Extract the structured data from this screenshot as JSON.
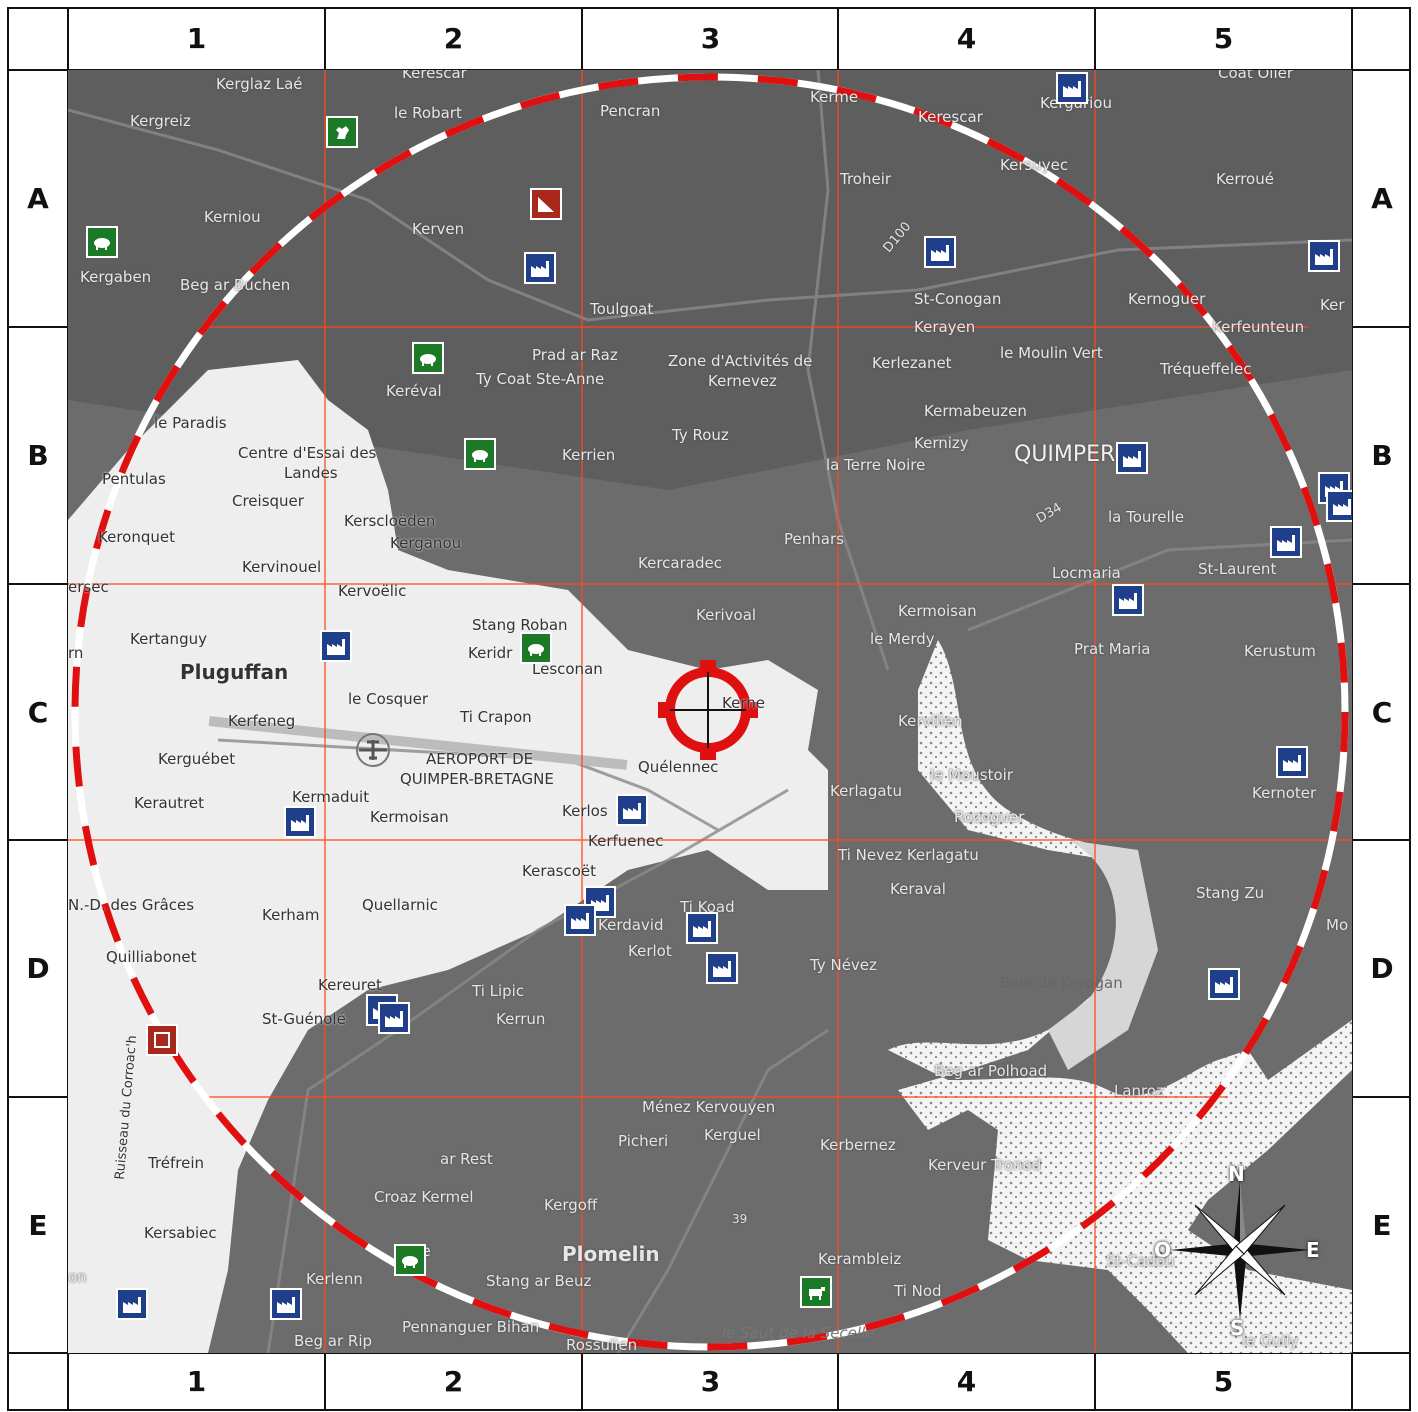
{
  "grid": {
    "columns": [
      "1",
      "2",
      "3",
      "4",
      "5"
    ],
    "rows": [
      "A",
      "B",
      "C",
      "D",
      "E"
    ]
  },
  "colors": {
    "relief_dark": "#6c6c6c",
    "lowland_light": "#eeeeee",
    "water": "#e8e8e8",
    "grid_line": "#ff4a1a",
    "radius_red": "#e01010",
    "factory_blue": "#1f3f8a",
    "farm_green": "#1c7a26",
    "hazard_red": "#a8281c"
  },
  "target": {
    "icon": "crosshair-target-icon"
  },
  "compass": {
    "n": "N",
    "s": "S",
    "e": "E",
    "w": "O"
  },
  "places": [
    {
      "id": "kerglaz",
      "label": "Kerglaz Laé"
    },
    {
      "id": "kergreiz",
      "label": "Kergreiz"
    },
    {
      "id": "lerobart",
      "label": "le Robart"
    },
    {
      "id": "pencran",
      "label": "Pencran"
    },
    {
      "id": "kerescar",
      "label": "Kerescar"
    },
    {
      "id": "kerescar2",
      "label": "Kerescar"
    },
    {
      "id": "kerme",
      "label": "Kerme"
    },
    {
      "id": "kergariou",
      "label": "Kergariou"
    },
    {
      "id": "coatolier",
      "label": "Coat Olier"
    },
    {
      "id": "kerniou",
      "label": "Kerniou"
    },
    {
      "id": "kerven",
      "label": "Kerven"
    },
    {
      "id": "troheir",
      "label": "Troheir"
    },
    {
      "id": "kersuyec",
      "label": "Kersuyec"
    },
    {
      "id": "kerroue",
      "label": "Kerroué"
    },
    {
      "id": "kergaben",
      "label": "Kergaben"
    },
    {
      "id": "begarbuchen",
      "label": "Beg ar Buchen"
    },
    {
      "id": "d100",
      "label": "D100"
    },
    {
      "id": "stconogan",
      "label": "St-Conogan"
    },
    {
      "id": "kernoguer",
      "label": "Kernoguer"
    },
    {
      "id": "toulgoat",
      "label": "Toulgoat"
    },
    {
      "id": "kerayen",
      "label": "Kerayen"
    },
    {
      "id": "kerfeunteun",
      "label": "Kerfeunteun"
    },
    {
      "id": "pradarraz",
      "label": "Prad ar Raz"
    },
    {
      "id": "tycoat",
      "label": "Ty Coat Ste-Anne"
    },
    {
      "id": "zone",
      "label": "Zone d'Activités de"
    },
    {
      "id": "kernevez",
      "label": "Kernevez"
    },
    {
      "id": "kerlezanet",
      "label": "Kerlezanet"
    },
    {
      "id": "moulinvert",
      "label": "le Moulin Vert"
    },
    {
      "id": "trequeffelec",
      "label": "Tréqueffelec"
    },
    {
      "id": "kereval",
      "label": "Keréval"
    },
    {
      "id": "kermabeuzen",
      "label": "Kermabeuzen"
    },
    {
      "id": "leparadis",
      "label": "le Paradis"
    },
    {
      "id": "tyrouz",
      "label": "Ty Rouz"
    },
    {
      "id": "kernizy",
      "label": "Kernizy"
    },
    {
      "id": "centre",
      "label": "Centre d'Essai des"
    },
    {
      "id": "landes",
      "label": "Landes"
    },
    {
      "id": "kerrien",
      "label": "Kerrien"
    },
    {
      "id": "terrenoire",
      "label": "la Terre Noire"
    },
    {
      "id": "quimper",
      "label": "QUIMPER"
    },
    {
      "id": "pentulas",
      "label": "Pentulas"
    },
    {
      "id": "creisquer",
      "label": "Creisquer"
    },
    {
      "id": "d34",
      "label": "D34"
    },
    {
      "id": "latourelle",
      "label": "la Tourelle"
    },
    {
      "id": "kersclo",
      "label": "Kerscloëden"
    },
    {
      "id": "kerganou",
      "label": "Kerganou"
    },
    {
      "id": "penhars",
      "label": "Penhars"
    },
    {
      "id": "keronquet",
      "label": "Keronquet"
    },
    {
      "id": "kercaradec",
      "label": "Kercaradec"
    },
    {
      "id": "stlaurent",
      "label": "St-Laurent"
    },
    {
      "id": "kervinouel",
      "label": "Kervinouel"
    },
    {
      "id": "locmaria",
      "label": "Locmaria"
    },
    {
      "id": "kervoelic",
      "label": "Kervoëlic"
    },
    {
      "id": "kerivoal",
      "label": "Kerivoal"
    },
    {
      "id": "kermoisan",
      "label": "Kermoisan"
    },
    {
      "id": "stangroban",
      "label": "Stang Roban"
    },
    {
      "id": "kertanguy",
      "label": "Kertanguy"
    },
    {
      "id": "kerido",
      "label": "Keridr"
    },
    {
      "id": "lemerdy",
      "label": "le Merdy"
    },
    {
      "id": "pratmaria",
      "label": "Prat Maria"
    },
    {
      "id": "kerustum",
      "label": "Kerustum"
    },
    {
      "id": "pluguffan",
      "label": "Pluguffan"
    },
    {
      "id": "lesconan",
      "label": "Lesconan"
    },
    {
      "id": "lecosquer",
      "label": "le Cosquer"
    },
    {
      "id": "kerfeneg",
      "label": "Kerfeneg"
    },
    {
      "id": "ticrapon",
      "label": "Ti Crapon"
    },
    {
      "id": "kerne",
      "label": "Kerne"
    },
    {
      "id": "kervilien",
      "label": "Kervilien"
    },
    {
      "id": "kerguebet",
      "label": "Kerguébet"
    },
    {
      "id": "aeroport",
      "label": "AEROPORT DE"
    },
    {
      "id": "quimperbretagne",
      "label": "QUIMPER-BRETAGNE"
    },
    {
      "id": "quelennec",
      "label": "Quélennec"
    },
    {
      "id": "lemoustoir",
      "label": "le Moustoir"
    },
    {
      "id": "kerautret",
      "label": "Kerautret"
    },
    {
      "id": "kermaduit",
      "label": "Kermaduit"
    },
    {
      "id": "kerlagatu",
      "label": "Kerlagatu"
    },
    {
      "id": "kernoter",
      "label": "Kernoter"
    },
    {
      "id": "kermoisan2",
      "label": "Kermoisan"
    },
    {
      "id": "kerlos",
      "label": "Kerlos"
    },
    {
      "id": "rozoguer",
      "label": "Rozoguer"
    },
    {
      "id": "kerfuenec",
      "label": "Kerfuenec"
    },
    {
      "id": "tinevez",
      "label": "Ti Nevez Kerlagatu"
    },
    {
      "id": "kerascoet",
      "label": "Kerascoët"
    },
    {
      "id": "keraval",
      "label": "Keraval"
    },
    {
      "id": "ndgraces",
      "label": "N.-D. des Grâces"
    },
    {
      "id": "quellarnic",
      "label": "Quellarnic"
    },
    {
      "id": "kerham",
      "label": "Kerham"
    },
    {
      "id": "tikoad",
      "label": "Ti Koad"
    },
    {
      "id": "kerdavid",
      "label": "Kerdavid"
    },
    {
      "id": "stangzu",
      "label": "Stang Zu"
    },
    {
      "id": "quilliabonet",
      "label": "Quilliabonet"
    },
    {
      "id": "kerlot",
      "label": "Kerlot"
    },
    {
      "id": "tynevez",
      "label": "Ty Névez"
    },
    {
      "id": "baie",
      "label": "Baie de Kerogan"
    },
    {
      "id": "kereuret",
      "label": "Kereuret"
    },
    {
      "id": "tilipic",
      "label": "Ti Lipic"
    },
    {
      "id": "stguenole",
      "label": "St-Guénolé"
    },
    {
      "id": "kerrun",
      "label": "Kerrun"
    },
    {
      "id": "ruisseau",
      "label": "Ruisseau du Corroac'h"
    },
    {
      "id": "begarpolhoad",
      "label": "Beg ar Polhoad"
    },
    {
      "id": "lanroz",
      "label": "Lanroz"
    },
    {
      "id": "menez",
      "label": "Ménez Kervouyen"
    },
    {
      "id": "picheri",
      "label": "Picheri"
    },
    {
      "id": "kerguel",
      "label": "Kerguel"
    },
    {
      "id": "kerbernez",
      "label": "Kerbernez"
    },
    {
      "id": "trefrein",
      "label": "Tréfrein"
    },
    {
      "id": "arrest",
      "label": "ar Rest"
    },
    {
      "id": "kerveur",
      "label": "Kerveur Tronod"
    },
    {
      "id": "croaz",
      "label": "Croaz Kermel"
    },
    {
      "id": "kergoff",
      "label": "Kergoff"
    },
    {
      "id": "n39",
      "label": "39"
    },
    {
      "id": "kersabiec",
      "label": "Kersabiec"
    },
    {
      "id": "plomelin",
      "label": "Plomelin"
    },
    {
      "id": "kerambleiz",
      "label": "Kerambleiz"
    },
    {
      "id": "stcadou",
      "label": "St-Cadou"
    },
    {
      "id": "kerlenn",
      "label": "Kerlenn"
    },
    {
      "id": "stangarbeuz",
      "label": "Stang ar Beuz"
    },
    {
      "id": "tinod",
      "label": "Ti Nod"
    },
    {
      "id": "begarrip",
      "label": "Beg ar Rip"
    },
    {
      "id": "pennanguer",
      "label": "Pennanguer Bihan"
    },
    {
      "id": "rossulien",
      "label": "Rossulien"
    },
    {
      "id": "sautdelaneelle",
      "label": "le Saut de la Sécelle"
    },
    {
      "id": "leguily",
      "label": "le Guily"
    },
    {
      "id": "lesaye",
      "label": "ge"
    },
    {
      "id": "on",
      "label": "on"
    },
    {
      "id": "rn",
      "label": "rn"
    },
    {
      "id": "ersec",
      "label": "ersec"
    },
    {
      "id": "kerr",
      "label": "Ker"
    },
    {
      "id": "mo",
      "label": "Mo"
    }
  ],
  "pois": [
    {
      "id": "f1",
      "type": "factory",
      "icon": "factory-icon"
    },
    {
      "id": "f2",
      "type": "factory",
      "icon": "factory-icon"
    },
    {
      "id": "f3",
      "type": "factory",
      "icon": "factory-icon"
    },
    {
      "id": "f4",
      "type": "factory",
      "icon": "factory-icon"
    },
    {
      "id": "f5",
      "type": "factory",
      "icon": "factory-icon"
    },
    {
      "id": "f6",
      "type": "factory",
      "icon": "factory-icon"
    },
    {
      "id": "f7",
      "type": "factory",
      "icon": "factory-icon"
    },
    {
      "id": "f8",
      "type": "factory",
      "icon": "factory-icon"
    },
    {
      "id": "f9",
      "type": "factory",
      "icon": "factory-icon"
    },
    {
      "id": "f10",
      "type": "factory",
      "icon": "factory-icon"
    },
    {
      "id": "f11",
      "type": "factory",
      "icon": "factory-icon"
    },
    {
      "id": "f12",
      "type": "factory",
      "icon": "factory-icon"
    },
    {
      "id": "f13",
      "type": "factory",
      "icon": "factory-icon"
    },
    {
      "id": "f14",
      "type": "factory",
      "icon": "factory-icon"
    },
    {
      "id": "f15",
      "type": "factory",
      "icon": "factory-icon"
    },
    {
      "id": "f16",
      "type": "factory",
      "icon": "factory-icon"
    },
    {
      "id": "f17",
      "type": "factory",
      "icon": "factory-icon"
    },
    {
      "id": "f18",
      "type": "factory",
      "icon": "factory-icon"
    },
    {
      "id": "f19",
      "type": "factory",
      "icon": "factory-icon"
    },
    {
      "id": "f20",
      "type": "factory",
      "icon": "factory-icon"
    },
    {
      "id": "f21",
      "type": "factory",
      "icon": "factory-icon"
    },
    {
      "id": "f22",
      "type": "factory",
      "icon": "factory-icon"
    },
    {
      "id": "c1",
      "type": "farm",
      "icon": "chicken-icon"
    },
    {
      "id": "p1",
      "type": "farm",
      "icon": "pig-icon"
    },
    {
      "id": "p2",
      "type": "farm",
      "icon": "pig-icon"
    },
    {
      "id": "p3",
      "type": "farm",
      "icon": "pig-icon"
    },
    {
      "id": "p4",
      "type": "farm",
      "icon": "pig-icon"
    },
    {
      "id": "p5",
      "type": "farm",
      "icon": "pig-icon"
    },
    {
      "id": "cow1",
      "type": "farm",
      "icon": "cow-icon"
    },
    {
      "id": "h1",
      "type": "hazard",
      "icon": "landslide-icon"
    },
    {
      "id": "h2",
      "type": "hazard",
      "icon": "hazard-square-icon"
    }
  ]
}
